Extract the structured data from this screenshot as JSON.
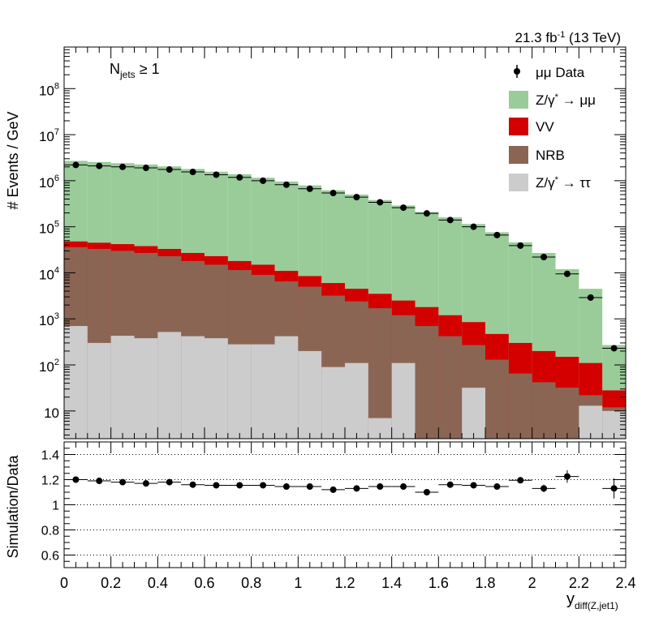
{
  "chart_data": [
    {
      "type": "bar",
      "subtype": "stacked-histogram-log",
      "lumi_prefix": "21.3 fb",
      "lumi_sup": "-1",
      "lumi_suffix": " (13 TeV)",
      "selection_main": "N",
      "selection_sub": "jets",
      "selection_rest": " ≥ 1",
      "ylabel": "# Events / GeV",
      "log_y": true,
      "ylim": [
        2.5,
        800000000
      ],
      "xlim": [
        0,
        2.4
      ],
      "yticks": [
        {
          "v": 10,
          "t": "10"
        },
        {
          "v": 100,
          "t": "10",
          "sup": "2"
        },
        {
          "v": 1000,
          "t": "10",
          "sup": "3"
        },
        {
          "v": 10000,
          "t": "10",
          "sup": "4"
        },
        {
          "v": 100000,
          "t": "10",
          "sup": "5"
        },
        {
          "v": 1000000,
          "t": "10",
          "sup": "6"
        },
        {
          "v": 10000000,
          "t": "10",
          "sup": "7"
        },
        {
          "v": 100000000,
          "t": "10",
          "sup": "8"
        }
      ],
      "legend_position": "top-right",
      "bin_edges": [
        0,
        0.1,
        0.2,
        0.3,
        0.4,
        0.5,
        0.6,
        0.7,
        0.8,
        0.9,
        1.0,
        1.1,
        1.2,
        1.3,
        1.4,
        1.5,
        1.6,
        1.7,
        1.8,
        1.9,
        2.0,
        2.1,
        2.2,
        2.3,
        2.4
      ],
      "stack": [
        {
          "key": "tautau",
          "legend_a": "Z/γ",
          "legend_sup": "*",
          "legend_b": " → ττ",
          "color": "#cccccc",
          "totals": [
            700,
            300,
            430,
            380,
            520,
            420,
            380,
            280,
            280,
            420,
            200,
            90,
            110,
            7,
            110,
            1,
            1,
            32,
            1,
            1,
            1,
            1,
            13,
            10
          ]
        },
        {
          "key": "nrb",
          "legend_a": "NRB",
          "color": "#8b6553",
          "totals": [
            36000,
            33000,
            30000,
            27000,
            23000,
            18000,
            15000,
            11500,
            9000,
            6500,
            5000,
            3200,
            2400,
            1700,
            1200,
            700,
            420,
            270,
            130,
            65,
            42,
            32,
            22,
            12
          ]
        },
        {
          "key": "vv",
          "legend_a": "VV",
          "color": "#d40000",
          "totals": [
            48000,
            45000,
            42000,
            38000,
            33000,
            27000,
            23000,
            18000,
            15000,
            11000,
            8500,
            6000,
            4500,
            3500,
            2500,
            1800,
            1200,
            850,
            470,
            300,
            200,
            150,
            110,
            28
          ]
        },
        {
          "key": "zmumu",
          "legend_a": "Z/γ",
          "legend_sup": "*",
          "legend_b": " → μμ",
          "color": "#99cc99",
          "totals": [
            2700000,
            2550000,
            2400000,
            2250000,
            2050000,
            1800000,
            1570000,
            1380000,
            1160000,
            960000,
            790000,
            620000,
            500000,
            380000,
            290000,
            210000,
            160000,
            115000,
            76000,
            46000,
            27000,
            12000,
            4500,
            270
          ]
        }
      ],
      "data": {
        "legend": "μμ Data",
        "x": [
          0.05,
          0.15,
          0.25,
          0.35,
          0.45,
          0.55,
          0.65,
          0.75,
          0.85,
          0.95,
          1.05,
          1.15,
          1.25,
          1.35,
          1.45,
          1.55,
          1.65,
          1.75,
          1.85,
          1.95,
          2.05,
          2.15,
          2.25,
          2.35
        ],
        "y": [
          2200000,
          2100000,
          2000000,
          1900000,
          1750000,
          1550000,
          1350000,
          1180000,
          1000000,
          820000,
          670000,
          540000,
          440000,
          340000,
          260000,
          195000,
          140000,
          100000,
          66000,
          39000,
          22000,
          9500,
          2900,
          230
        ]
      }
    },
    {
      "type": "scatter",
      "ylabel": "Simulation/Data",
      "xlabel_main": "y",
      "xlabel_sub": "diff(Z,jet1)",
      "ylim": [
        0.5,
        1.5
      ],
      "xlim": [
        0,
        2.4
      ],
      "yticks": [
        {
          "v": 0.6,
          "t": "0.6"
        },
        {
          "v": 0.8,
          "t": "0.8"
        },
        {
          "v": 1.0,
          "t": "1"
        },
        {
          "v": 1.2,
          "t": "1.2"
        },
        {
          "v": 1.4,
          "t": "1.4"
        }
      ],
      "xticks": [
        {
          "v": 0,
          "t": "0"
        },
        {
          "v": 0.2,
          "t": "0.2"
        },
        {
          "v": 0.4,
          "t": "0.4"
        },
        {
          "v": 0.6,
          "t": "0.6"
        },
        {
          "v": 0.8,
          "t": "0.8"
        },
        {
          "v": 1.0,
          "t": "1"
        },
        {
          "v": 1.2,
          "t": "1.2"
        },
        {
          "v": 1.4,
          "t": "1.4"
        },
        {
          "v": 1.6,
          "t": "1.6"
        },
        {
          "v": 1.8,
          "t": "1.8"
        },
        {
          "v": 2.0,
          "t": "2"
        },
        {
          "v": 2.2,
          "t": "2.2"
        },
        {
          "v": 2.4,
          "t": "2.4"
        }
      ],
      "grid_y": [
        0.6,
        0.8,
        1.0,
        1.2,
        1.4
      ],
      "x": [
        0.05,
        0.15,
        0.25,
        0.35,
        0.45,
        0.55,
        0.65,
        0.75,
        0.85,
        0.95,
        1.05,
        1.15,
        1.25,
        1.35,
        1.45,
        1.55,
        1.65,
        1.75,
        1.85,
        1.95,
        2.05,
        2.15,
        2.35
      ],
      "y": [
        1.2,
        1.19,
        1.18,
        1.17,
        1.18,
        1.16,
        1.155,
        1.155,
        1.155,
        1.145,
        1.145,
        1.12,
        1.13,
        1.145,
        1.145,
        1.1,
        1.16,
        1.155,
        1.145,
        1.195,
        1.13,
        1.225,
        1.13
      ],
      "yerr": [
        0.005,
        0.005,
        0.005,
        0.005,
        0.005,
        0.005,
        0.005,
        0.005,
        0.005,
        0.006,
        0.006,
        0.007,
        0.008,
        0.008,
        0.009,
        0.01,
        0.012,
        0.013,
        0.015,
        0.02,
        0.03,
        0.05,
        0.08
      ]
    }
  ]
}
